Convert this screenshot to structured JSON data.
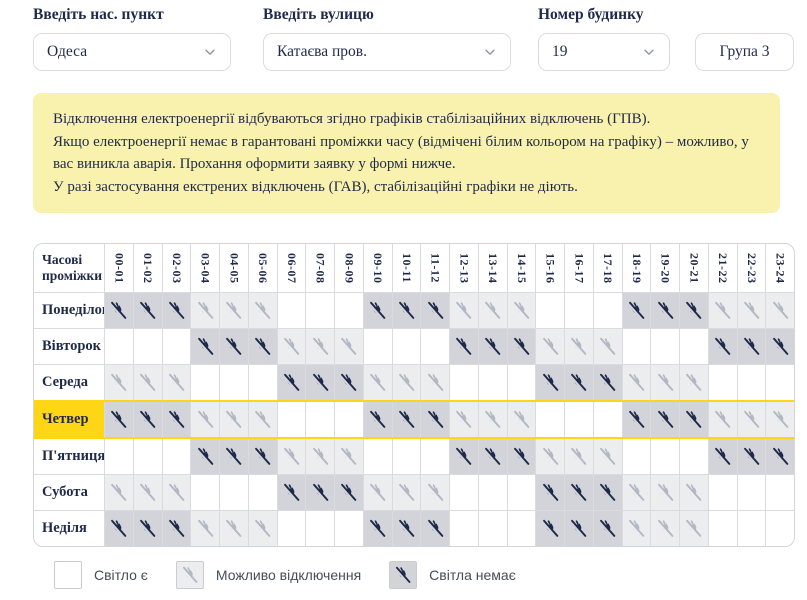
{
  "filters": {
    "city": {
      "label": "Введіть нас. пункт",
      "value": "Одеса"
    },
    "street": {
      "label": "Введіть вулицю",
      "value": "Катаєва пров."
    },
    "building": {
      "label": "Номер будинку",
      "value": "19"
    },
    "group_badge": "Група 3"
  },
  "notice": {
    "lines": [
      "Відключення електроенергії відбуваються згідно графіків стабілізаційних відключень (ГПВ).",
      "Якщо електроенергії немає в гарантовані проміжки часу (відмічені білим кольором на графіку) – можливо, у вас виникла аварія. Прохання оформити заявку у формі нижче.",
      "У разі застосування екстрених відключень (ГАВ), стабілізаційні графіки не діють."
    ]
  },
  "schedule": {
    "corner_header": "Часові проміжки",
    "time_slots": [
      "00-01",
      "01-02",
      "02-03",
      "03-04",
      "04-05",
      "05-06",
      "06-07",
      "07-08",
      "08-09",
      "09-10",
      "10-11",
      "11-12",
      "12-13",
      "13-14",
      "14-15",
      "15-16",
      "16-17",
      "17-18",
      "18-19",
      "19-20",
      "20-21",
      "21-22",
      "22-23",
      "23-24"
    ],
    "days": [
      {
        "name": "Понеділок",
        "highlighted": false,
        "cells": [
          "off",
          "off",
          "off",
          "maybe",
          "maybe",
          "maybe",
          "on",
          "on",
          "on",
          "off",
          "off",
          "off",
          "maybe",
          "maybe",
          "maybe",
          "on",
          "on",
          "on",
          "off",
          "off",
          "off",
          "maybe",
          "maybe",
          "maybe"
        ]
      },
      {
        "name": "Вівторок",
        "highlighted": false,
        "cells": [
          "on",
          "on",
          "on",
          "off",
          "off",
          "off",
          "maybe",
          "maybe",
          "maybe",
          "on",
          "on",
          "on",
          "off",
          "off",
          "off",
          "maybe",
          "maybe",
          "maybe",
          "on",
          "on",
          "on",
          "off",
          "off",
          "off"
        ]
      },
      {
        "name": "Середа",
        "highlighted": false,
        "cells": [
          "maybe",
          "maybe",
          "maybe",
          "on",
          "on",
          "on",
          "off",
          "off",
          "off",
          "maybe",
          "maybe",
          "maybe",
          "on",
          "on",
          "on",
          "off",
          "off",
          "off",
          "maybe",
          "maybe",
          "maybe",
          "on",
          "on",
          "on"
        ]
      },
      {
        "name": "Четвер",
        "highlighted": true,
        "cells": [
          "off",
          "off",
          "off",
          "maybe",
          "maybe",
          "maybe",
          "on",
          "on",
          "on",
          "off",
          "off",
          "off",
          "maybe",
          "maybe",
          "maybe",
          "on",
          "on",
          "on",
          "off",
          "off",
          "off",
          "maybe",
          "maybe",
          "maybe"
        ]
      },
      {
        "name": "П'ятниця",
        "highlighted": false,
        "cells": [
          "on",
          "on",
          "on",
          "off",
          "off",
          "off",
          "maybe",
          "maybe",
          "maybe",
          "on",
          "on",
          "on",
          "off",
          "off",
          "off",
          "maybe",
          "maybe",
          "maybe",
          "on",
          "on",
          "on",
          "off",
          "off",
          "off"
        ]
      },
      {
        "name": "Субота",
        "highlighted": false,
        "cells": [
          "maybe",
          "maybe",
          "maybe",
          "on",
          "on",
          "on",
          "off",
          "off",
          "off",
          "maybe",
          "maybe",
          "maybe",
          "on",
          "on",
          "on",
          "off",
          "off",
          "off",
          "maybe",
          "maybe",
          "maybe",
          "on",
          "on",
          "on"
        ]
      },
      {
        "name": "Неділя",
        "highlighted": false,
        "cells": [
          "off",
          "off",
          "off",
          "maybe",
          "maybe",
          "maybe",
          "on",
          "on",
          "on",
          "off",
          "off",
          "off",
          "on",
          "on",
          "on",
          "off",
          "off",
          "off",
          "maybe",
          "maybe",
          "maybe",
          "on",
          "on",
          "on"
        ]
      }
    ]
  },
  "legend": {
    "items": [
      {
        "state": "on",
        "label": "Світло є"
      },
      {
        "state": "maybe",
        "label": "Можливо відключення"
      },
      {
        "state": "off",
        "label": "Світла немає"
      }
    ]
  },
  "colors": {
    "navy_text": "#1f2a4a",
    "notice_bg": "#f9f1ae",
    "highlight_yellow": "#ffd616",
    "cell_off_bg": "#d3d4d9",
    "cell_maybe_bg": "#ecedef",
    "icon_off": "#1e2a4a",
    "icon_maybe": "#b2b8c3",
    "grid_border": "#dadbde"
  }
}
